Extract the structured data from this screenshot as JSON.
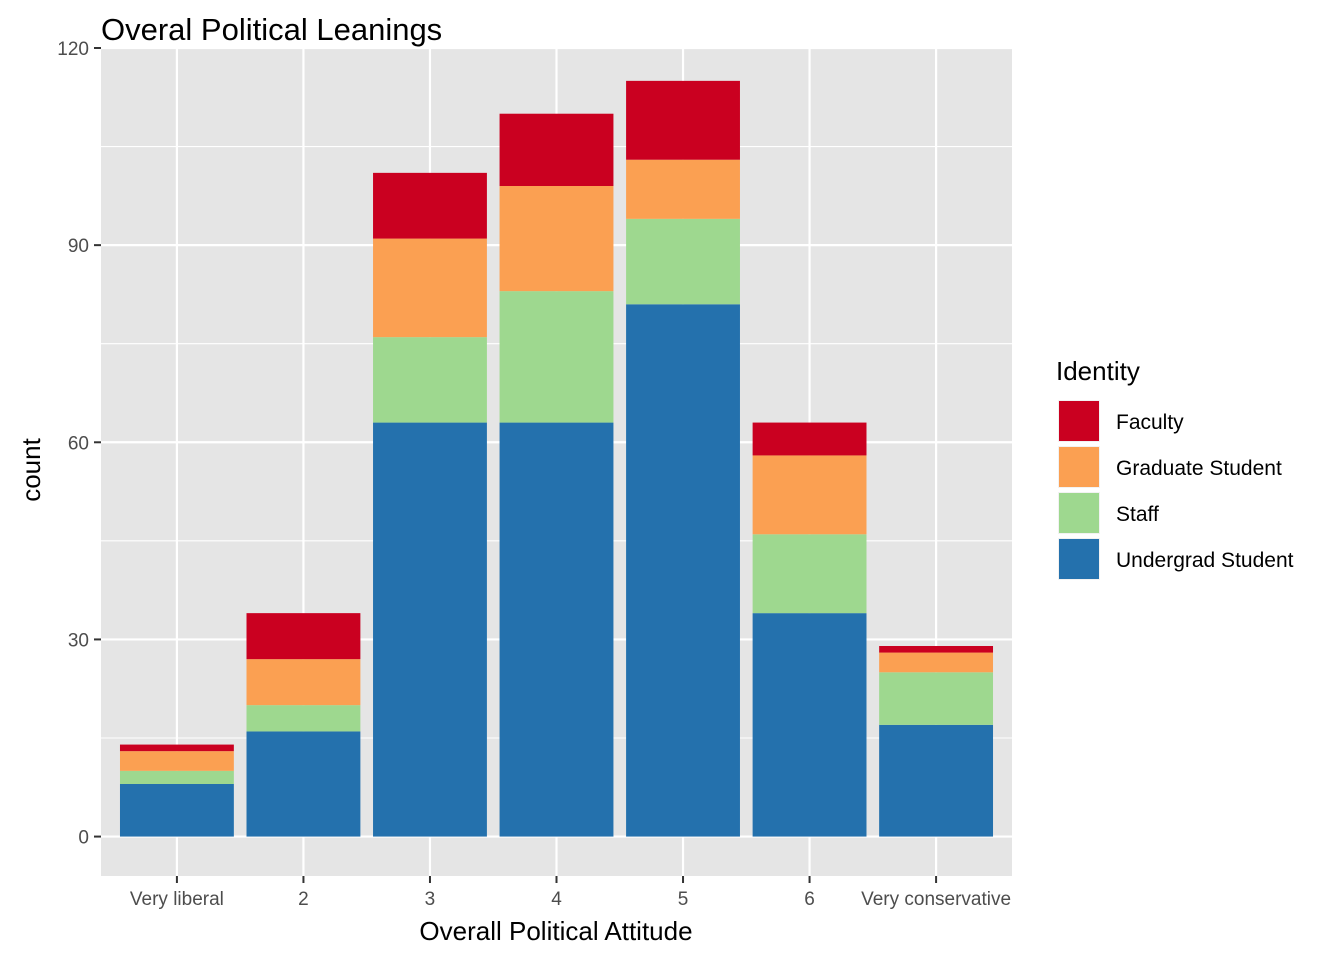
{
  "chart_data": {
    "type": "bar",
    "stacked": true,
    "title": "Overal Political Leanings",
    "xlabel": "Overall Political Attitude",
    "ylabel": "count",
    "ylim": [
      -6,
      120
    ],
    "yticks": [
      0,
      30,
      60,
      90,
      120
    ],
    "grid": true,
    "categories": [
      "Very liberal",
      "2",
      "3",
      "4",
      "5",
      "6",
      "Very conservative"
    ],
    "legend": {
      "title": "Identity",
      "placement": "right"
    },
    "series": [
      {
        "name": "Undergrad Student",
        "color": "#2471AD",
        "values": [
          8,
          16,
          63,
          63,
          81,
          34,
          17
        ]
      },
      {
        "name": "Staff",
        "color": "#9ED88F",
        "values": [
          2,
          4,
          13,
          20,
          13,
          12,
          8
        ]
      },
      {
        "name": "Graduate Student",
        "color": "#FBA052",
        "values": [
          3,
          7,
          15,
          16,
          9,
          12,
          3
        ]
      },
      {
        "name": "Faculty",
        "color": "#CA0020",
        "values": [
          1,
          7,
          10,
          11,
          12,
          5,
          1
        ]
      }
    ],
    "legend_order": [
      "Faculty",
      "Graduate Student",
      "Staff",
      "Undergrad Student"
    ],
    "colors": {
      "panel_bg": "#E5E5E5",
      "grid_major": "#FFFFFF",
      "tick_text": "#4D4D4D",
      "text": "#000000"
    }
  }
}
